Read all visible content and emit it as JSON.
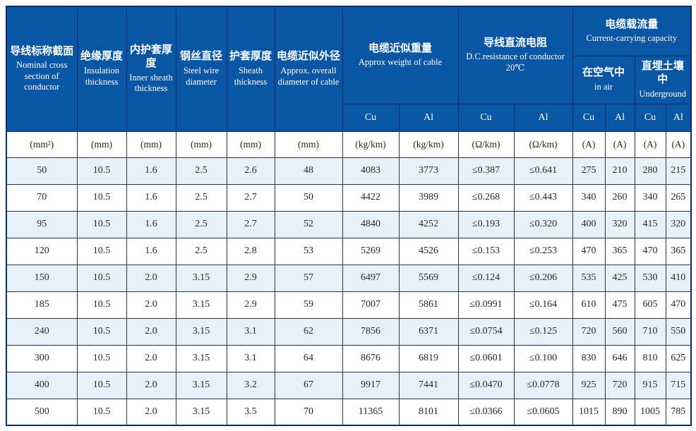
{
  "table": {
    "header": {
      "nominal": {
        "zh": "导线标称截面",
        "en": "Nominal cross section of conductor"
      },
      "insulation": {
        "zh": "绝缘厚度",
        "en": "Insulation thickness"
      },
      "inner_sheath": {
        "zh": "内护套厚度",
        "en": "Inner sheath thickness"
      },
      "steel_wire": {
        "zh": "钢丝直径",
        "en": "Steel wire diameter"
      },
      "sheath": {
        "zh": "护套厚度",
        "en": "Sheath thickness"
      },
      "diameter": {
        "zh": "电缆近似外径",
        "en": "Approx. overall diameter of cable"
      },
      "weight": {
        "zh": "电缆近似重量",
        "en": "Approx weight of cable"
      },
      "resistance": {
        "zh": "导线直流电阻",
        "en": "D.C.resistance of conductor 20℃"
      },
      "capacity": {
        "zh": "电缆载流量",
        "en": "Current-carrying capacity"
      },
      "in_air": {
        "zh": "在空气中",
        "en": "in air"
      },
      "underground": {
        "zh": "直埋土壤中",
        "en": "Underground"
      },
      "materials": {
        "cu": "Cu",
        "al": "Al"
      }
    },
    "units": [
      "(mm²)",
      "(mm)",
      "(mm)",
      "(mm)",
      "(mm)",
      "(mm)",
      "(kg/km)",
      "(kg/km)",
      "(Ω/km)",
      "(Ω/km)",
      "(A)",
      "(A)",
      "(A)",
      "(A)"
    ],
    "rows": [
      [
        "50",
        "10.5",
        "1.6",
        "2.5",
        "2.6",
        "48",
        "4083",
        "3773",
        "≤0.387",
        "≤0.641",
        "275",
        "210",
        "280",
        "215"
      ],
      [
        "70",
        "10.5",
        "1.6",
        "2.5",
        "2.7",
        "50",
        "4422",
        "3989",
        "≤0.268",
        "≤0.443",
        "340",
        "260",
        "340",
        "265"
      ],
      [
        "95",
        "10.5",
        "1.6",
        "2.5",
        "2.7",
        "52",
        "4840",
        "4252",
        "≤0.193",
        "≤0.320",
        "400",
        "320",
        "415",
        "320"
      ],
      [
        "120",
        "10.5",
        "1.6",
        "2.5",
        "2.8",
        "53",
        "5269",
        "4526",
        "≤0.153",
        "≤0.253",
        "470",
        "365",
        "470",
        "365"
      ],
      [
        "150",
        "10.5",
        "2.0",
        "3.15",
        "2.9",
        "57",
        "6497",
        "5569",
        "≤0.124",
        "≤0.206",
        "535",
        "425",
        "530",
        "410"
      ],
      [
        "185",
        "10.5",
        "2.0",
        "3.15",
        "2.9",
        "59",
        "7007",
        "5861",
        "≤0.0991",
        "≤0.164",
        "610",
        "475",
        "605",
        "470"
      ],
      [
        "240",
        "10.5",
        "2.0",
        "3.15",
        "3.1",
        "62",
        "7856",
        "6371",
        "≤0.0754",
        "≤0.125",
        "720",
        "560",
        "710",
        "550"
      ],
      [
        "300",
        "10.5",
        "2.0",
        "3.15",
        "3.1",
        "64",
        "8676",
        "6819",
        "≤0.0601",
        "≤0.100",
        "830",
        "646",
        "810",
        "625"
      ],
      [
        "400",
        "10.5",
        "2.0",
        "3.15",
        "3.2",
        "67",
        "9917",
        "7441",
        "≤0.0470",
        "≤0.0778",
        "925",
        "720",
        "915",
        "715"
      ],
      [
        "500",
        "10.5",
        "2.0",
        "3.15",
        "3.5",
        "70",
        "11365",
        "8101",
        "≤0.0366",
        "≤0.0605",
        "1015",
        "890",
        "1005",
        "785"
      ]
    ],
    "colors": {
      "header_bg": "#0856a4",
      "header_grid": "#0a2d66",
      "row_alt_bg": "#e6f2fa",
      "body_grid": "#32363b",
      "body_text": "#26292c",
      "header_text": "#ffffff"
    }
  }
}
